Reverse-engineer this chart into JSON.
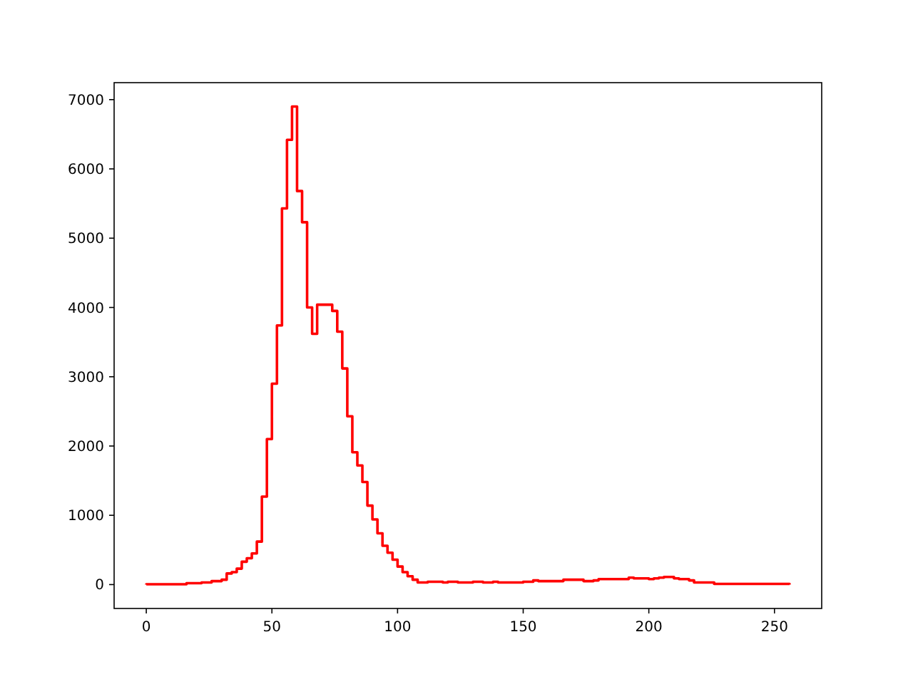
{
  "chart_data": {
    "type": "histogram",
    "color": "#ff0000",
    "bins": [
      0,
      2,
      4,
      6,
      8,
      10,
      12,
      14,
      16,
      18,
      20,
      22,
      24,
      26,
      28,
      30,
      32,
      34,
      36,
      38,
      40,
      42,
      44,
      46,
      48,
      50,
      52,
      54,
      56,
      58,
      60,
      62,
      64,
      66,
      68,
      70,
      72,
      74,
      76,
      78,
      80,
      82,
      84,
      86,
      88,
      90,
      92,
      94,
      96,
      98,
      100,
      102,
      104,
      106,
      108,
      110,
      112,
      114,
      116,
      118,
      120,
      122,
      124,
      126,
      128,
      130,
      132,
      134,
      136,
      138,
      140,
      142,
      144,
      146,
      148,
      150,
      152,
      154,
      156,
      158,
      160,
      162,
      164,
      166,
      168,
      170,
      172,
      174,
      176,
      178,
      180,
      182,
      184,
      186,
      188,
      190,
      192,
      194,
      196,
      198,
      200,
      202,
      204,
      206,
      208,
      210,
      212,
      214,
      216,
      218,
      220,
      222,
      224,
      226,
      228,
      230,
      232,
      234,
      236,
      238,
      240,
      242,
      244,
      246,
      248,
      250,
      252,
      254,
      256
    ],
    "values": [
      5,
      5,
      5,
      5,
      5,
      5,
      5,
      5,
      20,
      20,
      20,
      30,
      30,
      50,
      50,
      70,
      160,
      180,
      230,
      330,
      380,
      450,
      620,
      1270,
      2100,
      2900,
      3740,
      5430,
      6420,
      6900,
      5680,
      5230,
      4000,
      3620,
      4040,
      4040,
      4040,
      3950,
      3650,
      3120,
      2430,
      1910,
      1720,
      1480,
      1140,
      940,
      740,
      560,
      460,
      360,
      260,
      180,
      120,
      70,
      30,
      30,
      40,
      40,
      40,
      30,
      40,
      40,
      30,
      30,
      30,
      40,
      40,
      30,
      30,
      40,
      30,
      30,
      30,
      30,
      30,
      40,
      40,
      60,
      50,
      50,
      50,
      50,
      50,
      70,
      70,
      70,
      70,
      50,
      50,
      60,
      80,
      80,
      80,
      80,
      80,
      80,
      100,
      90,
      90,
      90,
      80,
      90,
      100,
      110,
      110,
      90,
      80,
      80,
      60,
      30,
      30,
      30,
      30,
      10,
      10,
      10,
      10,
      10,
      10,
      10,
      10,
      10,
      10,
      10,
      10,
      10,
      10,
      10
    ],
    "xlim": [
      -12.8,
      268.8
    ],
    "xticks": [
      0,
      50,
      100,
      150,
      200,
      250
    ],
    "ylim": [
      -345,
      7245
    ],
    "yticks": [
      0,
      1000,
      2000,
      3000,
      4000,
      5000,
      6000,
      7000
    ]
  }
}
